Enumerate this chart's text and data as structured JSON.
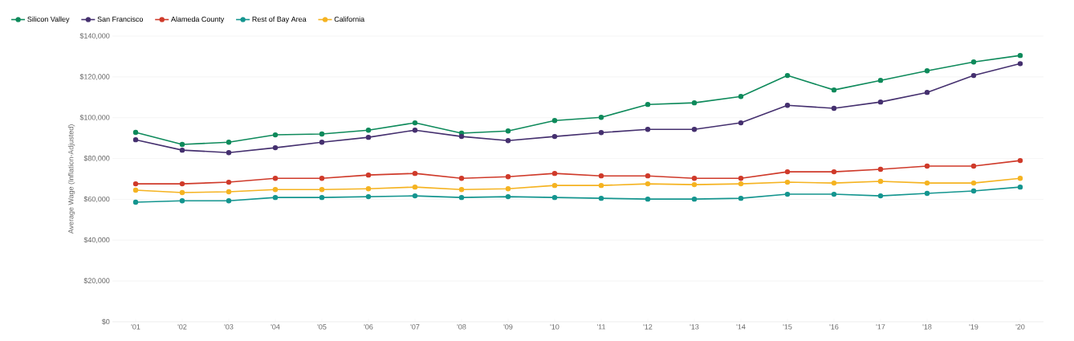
{
  "chart_data": {
    "type": "line",
    "ylabel": "Average Wage (Inflation-Adjusted)",
    "categories": [
      "'01",
      "'02",
      "'03",
      "'04",
      "'05",
      "'06",
      "'07",
      "'08",
      "'09",
      "'10",
      "'11",
      "'12",
      "'13",
      "'14",
      "'15",
      "'16",
      "'17",
      "'18",
      "'19",
      "'20"
    ],
    "series": [
      {
        "name": "Silicon Valley",
        "color": "#0e8a5b",
        "values": [
          92800,
          86900,
          88000,
          91600,
          92000,
          93900,
          97500,
          92400,
          93500,
          98600,
          100200,
          106500,
          107300,
          110400,
          120700,
          113600,
          118300,
          123000,
          127300,
          130500
        ]
      },
      {
        "name": "San Francisco",
        "color": "#45306f",
        "values": [
          89200,
          84100,
          82900,
          85300,
          88000,
          90400,
          93900,
          90800,
          88800,
          90800,
          92700,
          94300,
          94300,
          97500,
          106100,
          104600,
          107700,
          112400,
          120700,
          126500
        ]
      },
      {
        "name": "Alameda County",
        "color": "#cf3a2a",
        "values": [
          67600,
          67600,
          68400,
          70300,
          70300,
          71900,
          72700,
          70300,
          71100,
          72700,
          71500,
          71500,
          70300,
          70300,
          73500,
          73500,
          74700,
          76300,
          76300,
          79000
        ]
      },
      {
        "name": "Rest of Bay Area",
        "color": "#14958f",
        "values": [
          58600,
          59300,
          59300,
          60900,
          60900,
          61300,
          61700,
          60900,
          61300,
          60900,
          60500,
          60100,
          60100,
          60500,
          62500,
          62500,
          61700,
          62900,
          64100,
          66000
        ]
      },
      {
        "name": "California",
        "color": "#f5b321",
        "values": [
          64500,
          63300,
          63700,
          64800,
          64800,
          65200,
          66000,
          64800,
          65200,
          66800,
          66800,
          67600,
          67200,
          67600,
          68400,
          68000,
          68800,
          68000,
          68000,
          70300
        ]
      }
    ],
    "ylim": [
      0,
      140000
    ],
    "yticks": [
      {
        "value": 0,
        "label": "$0"
      },
      {
        "value": 20000,
        "label": "$20,000"
      },
      {
        "value": 40000,
        "label": "$40,000"
      },
      {
        "value": 60000,
        "label": "$60,000"
      },
      {
        "value": 80000,
        "label": "$80,000"
      },
      {
        "value": 100000,
        "label": "$100,000"
      },
      {
        "value": 120000,
        "label": "$120,000"
      },
      {
        "value": 140000,
        "label": "$140,000"
      }
    ],
    "grid": "y",
    "legend": "top left",
    "marker": "circle",
    "line_style": "solid"
  }
}
